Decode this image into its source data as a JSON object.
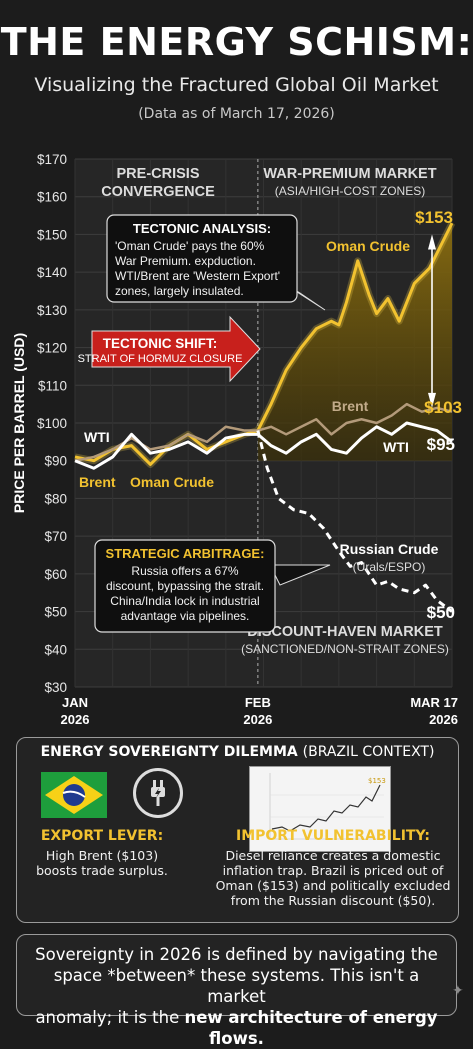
{
  "header": {
    "title": "THE ENERGY SCHISM:",
    "subtitle": "Visualizing the Fractured Global Oil Market",
    "as_of": "(Data as of March 17, 2026)"
  },
  "chart_data": {
    "type": "line",
    "ylabel": "PRICE PER BARREL (USD)",
    "ylim": [
      30,
      170
    ],
    "yticks": [
      30,
      40,
      50,
      60,
      70,
      80,
      90,
      100,
      110,
      120,
      130,
      140,
      150,
      160,
      170
    ],
    "ytick_labels": [
      "$30",
      "$40",
      "$50",
      "$60",
      "$70",
      "$80",
      "$90",
      "$100",
      "$110",
      "$120",
      "$130",
      "$140",
      "$150",
      "$160",
      "$170"
    ],
    "xlim": [
      0,
      10
    ],
    "x_ticks": [
      {
        "x": 0,
        "label": [
          "JAN",
          "2026"
        ]
      },
      {
        "x": 4.85,
        "label": [
          "FEB",
          "2026"
        ]
      },
      {
        "x": 10,
        "label": [
          "MAR 17",
          "2026"
        ]
      }
    ],
    "grid": true,
    "colors": {
      "oman": "#f2c230",
      "brent": "#b39a7a",
      "wti": "#ffffff",
      "russian": "#ffffff",
      "arrow": "#c8201c",
      "zone": "#6a5410"
    },
    "series": [
      {
        "name": "Oman Crude",
        "key": "oman",
        "style": "solid",
        "x": [
          0,
          0.5,
          1,
          1.5,
          2,
          2.5,
          3,
          3.5,
          4,
          4.5,
          4.85,
          5.2,
          5.6,
          6,
          6.4,
          6.8,
          7,
          7.2,
          7.5,
          7.8,
          8,
          8.3,
          8.6,
          9,
          9.4,
          9.7,
          10
        ],
        "y": [
          91,
          90,
          93,
          94,
          89,
          94,
          97,
          93,
          95,
          97,
          98,
          105,
          114,
          120,
          125,
          127,
          126,
          132,
          143,
          134,
          129,
          133,
          127,
          137,
          141,
          147,
          153
        ]
      },
      {
        "name": "Brent",
        "key": "brent",
        "style": "solid",
        "x": [
          0,
          0.5,
          1,
          1.5,
          2,
          2.5,
          3,
          3.5,
          4,
          4.5,
          4.85,
          5.2,
          5.6,
          6,
          6.4,
          6.8,
          7.2,
          7.6,
          8,
          8.4,
          8.8,
          9.2,
          9.6,
          10
        ],
        "y": [
          90,
          91,
          93,
          96,
          93,
          94,
          97,
          95,
          99,
          98,
          98,
          99,
          97,
          99,
          101,
          97,
          100,
          101,
          100,
          102,
          105,
          103,
          104,
          103
        ]
      },
      {
        "name": "WTI",
        "key": "wti",
        "style": "solid",
        "x": [
          0,
          0.5,
          1,
          1.5,
          2,
          2.5,
          3,
          3.5,
          4,
          4.5,
          4.85,
          5.2,
          5.6,
          6,
          6.4,
          6.8,
          7.2,
          7.6,
          8,
          8.4,
          8.8,
          9.2,
          9.6,
          10
        ],
        "y": [
          90,
          88,
          91,
          97,
          92,
          93,
          95,
          92,
          96,
          97,
          97,
          94,
          92,
          95,
          97,
          93,
          92,
          96,
          99,
          97,
          100,
          99,
          98,
          95
        ]
      },
      {
        "name": "Russian Crude",
        "key": "russian",
        "style": "dashed",
        "x": [
          4.85,
          5.1,
          5.4,
          5.8,
          6.2,
          6.6,
          7,
          7.3,
          7.6,
          8,
          8.3,
          8.6,
          9,
          9.3,
          9.6,
          10
        ],
        "y": [
          98,
          88,
          80,
          77,
          76,
          72,
          66,
          62,
          63,
          57,
          58,
          56,
          55,
          57,
          53,
          50
        ]
      }
    ],
    "zones": {
      "left_title": [
        "PRE-CRISIS",
        "CONVERGENCE"
      ],
      "right_title": "WAR-PREMIUM MARKET",
      "right_sub": "(ASIA/HIGH-COST ZONES)",
      "bottom_title": "DISCOUNT-HAVEN MARKET",
      "bottom_sub": "(SANCTIONED/NON-STRAIT ZONES)"
    },
    "series_labels": {
      "oman_right": "Oman Crude",
      "brent_right": "Brent",
      "wti_left": "WTI",
      "brent_left": "Brent",
      "oman_left": "Oman Crude",
      "russian_right": [
        "Russian Crude",
        "(Urals/ESPO)"
      ]
    },
    "end_values": {
      "oman": "$153",
      "brent": "$103",
      "wti": "$95",
      "russian": "$50"
    },
    "callouts": {
      "tectonic_analysis": {
        "heading": "TECTONIC ANALYSIS:",
        "lines": [
          "'Oman Crude' pays the 60%",
          "War Premium. expduction.",
          "WTI/Brent are 'Western Export'",
          "zones, largely insulated."
        ]
      },
      "tectonic_shift": {
        "heading": "TECTONIC SHIFT:",
        "sub": "STRAIT OF HORMUZ CLOSURE"
      },
      "strategic_arbitrage": {
        "heading": "STRATEGIC ARBITRAGE:",
        "lines": [
          "Russia offers a 67%",
          "discount, bypassing the strait.",
          "China/India lock in industrial",
          "advantage via pipelines."
        ]
      }
    }
  },
  "dilemma": {
    "title": "ENERGY SOVEREIGNTY DILEMMA",
    "context": "(BRAZIL CONTEXT)",
    "export_heading": "EXPORT LEVER:",
    "export_lines": [
      "High Brent ($103)",
      "boosts trade surplus."
    ],
    "import_heading": "IMPORT VULNERABILITY:",
    "import_lines": [
      "Diesel reliance creates a domestic",
      "inflation trap. Brazil is priced out of",
      "Oman ($153) and politically excluded",
      "from the Russian discount ($50)."
    ],
    "thumbnail_value": "$153"
  },
  "footer": {
    "line1": "Sovereignty in 2026 is defined by navigating the",
    "line2": "space *between* these systems. This isn't a market",
    "line3_a": "anomaly; it is the ",
    "line3_b": "new architecture of energy flows."
  }
}
